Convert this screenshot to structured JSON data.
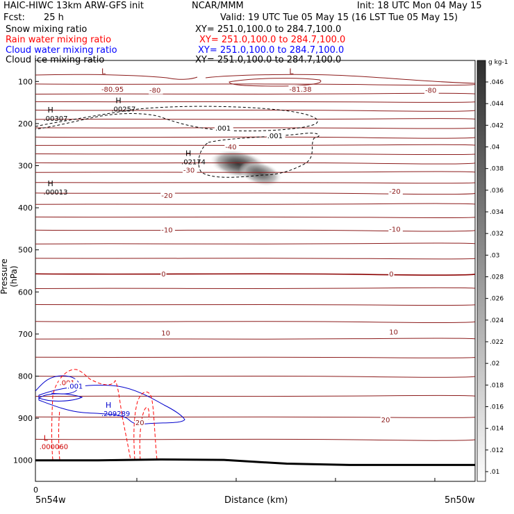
{
  "header": {
    "title_left": "HAIC-HIWC 13km ARW-GFS init",
    "center": "NCAR/MMM",
    "init": "Init: 18 UTC Mon 04 May 15",
    "fcst_label": "Fcst:",
    "fcst_value": "25 h",
    "valid": "Valid: 19 UTC Tue 05 May 15 (16 LST Tue 05 May 15)",
    "fields": [
      {
        "name": "Snow mixing ratio",
        "xy": "XY= 251.0,100.0 to 284.7,100.0",
        "color": "#000000"
      },
      {
        "name": "Rain water mixing ratio",
        "xy": "XY= 251.0,100.0 to 284.7,100.0",
        "color": "#ff0000"
      },
      {
        "name": "Cloud water mixing ratio",
        "xy": "XY= 251.0,100.0 to 284.7,100.0",
        "color": "#0000ff"
      },
      {
        "name": "Cloud ice mixing ratio",
        "xy": "XY= 251.0,100.0 to 284.7,100.0",
        "color": "#000000"
      }
    ]
  },
  "chart_data": {
    "type": "heatmap",
    "ylabel": "Pressure (hPa)",
    "xlabel": "Distance (km)",
    "x_left_label": "5n54w",
    "x_right_label": "5n50w",
    "x_zero_label": "0",
    "y_ticks": [
      100,
      200,
      300,
      400,
      500,
      600,
      700,
      800,
      900,
      1000
    ],
    "ylim": [
      1050,
      50
    ],
    "colorbar": {
      "unit": "g kg-1",
      "ticks": [
        ".046",
        ".044",
        ".042",
        ".04",
        ".038",
        ".036",
        ".034",
        ".032",
        ".03",
        ".028",
        ".026",
        ".024",
        ".022",
        ".02",
        ".018",
        ".016",
        ".014",
        ".012",
        ".01"
      ],
      "min": 0.01,
      "max": 0.047
    },
    "temperature_labels": [
      {
        "text": "-80.95",
        "p": 118,
        "x": 0.33
      },
      {
        "text": "-80",
        "p": 120,
        "x": 0.57
      },
      {
        "text": "-81.38",
        "p": 118,
        "x": 1.27
      },
      {
        "text": "-80",
        "p": 120,
        "x": 1.95
      },
      {
        "text": "-40",
        "p": 255,
        "x": 0.95
      },
      {
        "text": "-30",
        "p": 310,
        "x": 0.74
      },
      {
        "text": "-20",
        "p": 370,
        "x": 0.63
      },
      {
        "text": "-20",
        "p": 360,
        "x": 1.77
      },
      {
        "text": "-10",
        "p": 452,
        "x": 0.63
      },
      {
        "text": "-10",
        "p": 450,
        "x": 1.77
      },
      {
        "text": "0",
        "p": 557,
        "x": 0.63
      },
      {
        "text": "0",
        "p": 557,
        "x": 1.77
      },
      {
        "text": "10",
        "p": 697,
        "x": 0.63
      },
      {
        "text": "10",
        "p": 694,
        "x": 1.77
      },
      {
        "text": "20",
        "p": 910,
        "x": 0.5
      },
      {
        "text": "20",
        "p": 903,
        "x": 1.73
      }
    ],
    "extrema": [
      {
        "mark": "L",
        "value": "",
        "p": 95,
        "x": 0.33,
        "color": "#8b1a1a"
      },
      {
        "mark": "L",
        "value": "",
        "p": 95,
        "x": 1.27,
        "color": "#8b1a1a"
      },
      {
        "mark": "H",
        "value": ".00257",
        "p": 165,
        "x": 0.38,
        "color": "#000000"
      },
      {
        "mark": "H",
        "value": ".00307",
        "p": 187,
        "x": 0.04,
        "color": "#000000"
      },
      {
        "mark": "H",
        "value": ".02174",
        "p": 290,
        "x": 0.73,
        "color": "#000000"
      },
      {
        "mark": "H",
        "value": ".00013",
        "p": 362,
        "x": 0.04,
        "color": "#000000"
      },
      {
        "mark": "H",
        "value": ".209289",
        "p": 888,
        "x": 0.33,
        "color": "#0000cc"
      },
      {
        "mark": "L",
        "value": ".000060",
        "p": 967,
        "x": 0.02,
        "color": "#cc0000"
      }
    ],
    "contour_labels": [
      {
        "text": ".001",
        "p": 210,
        "x": 0.9,
        "color": "#000000"
      },
      {
        "text": ".001",
        "p": 228,
        "x": 1.16,
        "color": "#000000"
      },
      {
        "text": ".001",
        "p": 815,
        "x": 0.12,
        "color": "#cc0000"
      },
      {
        "text": ".001",
        "p": 823,
        "x": 0.16,
        "color": "#0000cc"
      }
    ],
    "isotherm_pressures": [
      106,
      130,
      148,
      168,
      190,
      210,
      232,
      252,
      272,
      293,
      316,
      340,
      365,
      392,
      422,
      453,
      486,
      520,
      557,
      592,
      630,
      670,
      712,
      755,
      800,
      848,
      897,
      950
    ],
    "surface_pressure": [
      1000,
      1000,
      998,
      999,
      1008,
      1011,
      1011,
      1011
    ]
  }
}
